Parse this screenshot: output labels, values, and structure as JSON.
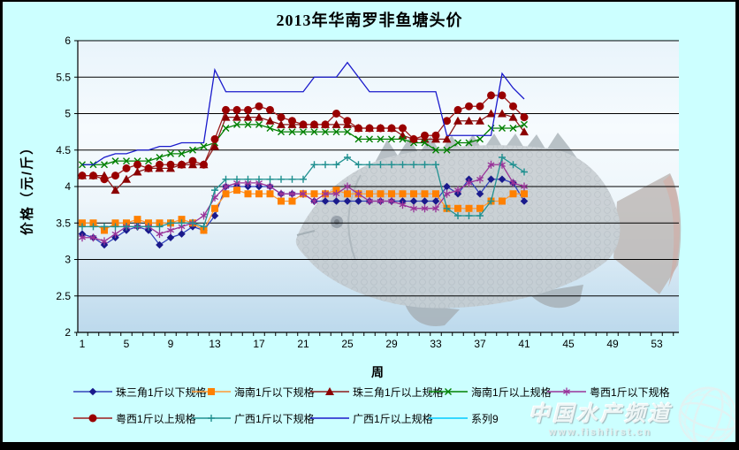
{
  "frame": {
    "background": "#ccffff",
    "border_color": "#000000"
  },
  "chart_data": {
    "type": "line",
    "title": "2013年华南罗非鱼塘头价",
    "xlabel": "周",
    "ylabel": "价格（元/斤）",
    "x_ticks": [
      1,
      5,
      9,
      13,
      17,
      21,
      25,
      29,
      33,
      37,
      41,
      45,
      49,
      53
    ],
    "x_range": [
      1,
      53
    ],
    "ylim": [
      2,
      6
    ],
    "y_ticks": [
      2,
      2.5,
      3,
      3.5,
      4,
      4.5,
      5,
      5.5,
      6
    ],
    "grid": "horizontal",
    "legend_position": "bottom",
    "weeks": [
      1,
      2,
      3,
      4,
      5,
      6,
      7,
      8,
      9,
      10,
      11,
      12,
      13,
      14,
      15,
      16,
      17,
      18,
      19,
      20,
      21,
      22,
      23,
      24,
      25,
      26,
      27,
      28,
      29,
      30,
      31,
      32,
      33,
      34,
      35,
      36,
      37,
      38,
      39,
      40,
      41
    ],
    "series": [
      {
        "id": "zhusanjiao-under",
        "name": "珠三角1斤以下规格",
        "marker": "diamond",
        "color": "#3344bb",
        "marker_color": "#1a1a8c",
        "values": [
          3.35,
          3.3,
          3.2,
          3.3,
          3.4,
          3.45,
          3.4,
          3.2,
          3.3,
          3.35,
          3.45,
          3.4,
          3.6,
          4.0,
          4.0,
          4.0,
          4.0,
          4.0,
          3.9,
          3.9,
          3.9,
          3.8,
          3.8,
          3.8,
          3.8,
          3.8,
          3.8,
          3.8,
          3.8,
          3.8,
          3.8,
          3.8,
          3.8,
          4.0,
          3.9,
          4.1,
          3.9,
          4.1,
          4.1,
          4.05,
          3.8
        ]
      },
      {
        "id": "hainan-under",
        "name": "海南1斤以下规格",
        "marker": "square",
        "color": "#ff9933",
        "marker_color": "#ff8000",
        "values": [
          3.5,
          3.5,
          3.4,
          3.5,
          3.5,
          3.55,
          3.5,
          3.5,
          3.5,
          3.55,
          3.5,
          3.4,
          3.7,
          3.9,
          3.95,
          3.9,
          3.9,
          3.9,
          3.8,
          3.8,
          3.9,
          3.9,
          3.9,
          3.95,
          3.9,
          3.9,
          3.9,
          3.9,
          3.9,
          3.9,
          3.9,
          3.9,
          3.9,
          3.7,
          3.7,
          3.7,
          3.7,
          3.8,
          3.8,
          3.9,
          3.9
        ]
      },
      {
        "id": "zhusanjiao-over",
        "name": "珠三角1斤以上规格",
        "marker": "triangle",
        "color": "#8b1a1a",
        "marker_color": "#8b0000",
        "values": [
          4.15,
          4.15,
          4.15,
          3.95,
          4.1,
          4.2,
          4.25,
          4.25,
          4.25,
          4.3,
          4.3,
          4.3,
          4.55,
          4.95,
          4.95,
          4.95,
          4.95,
          4.9,
          4.85,
          4.85,
          4.85,
          4.85,
          4.85,
          4.85,
          4.85,
          4.8,
          4.8,
          4.8,
          4.8,
          4.7,
          4.65,
          4.65,
          4.65,
          4.65,
          4.9,
          4.9,
          4.9,
          5.0,
          5.0,
          4.95,
          4.75
        ]
      },
      {
        "id": "hainan-over",
        "name": "海南1斤以上规格",
        "marker": "x",
        "color": "#008000",
        "marker_color": "#008000",
        "values": [
          4.3,
          4.3,
          4.3,
          4.35,
          4.35,
          4.35,
          4.35,
          4.4,
          4.45,
          4.45,
          4.5,
          4.55,
          4.6,
          4.8,
          4.85,
          4.85,
          4.85,
          4.8,
          4.75,
          4.75,
          4.75,
          4.75,
          4.75,
          4.75,
          4.75,
          4.65,
          4.65,
          4.65,
          4.65,
          4.65,
          4.6,
          4.6,
          4.5,
          4.5,
          4.6,
          4.6,
          4.65,
          4.8,
          4.8,
          4.8,
          4.85
        ]
      },
      {
        "id": "yuexi-under",
        "name": "粤西1斤以下规格",
        "marker": "star",
        "color": "#993399",
        "marker_color": "#993399",
        "values": [
          3.3,
          3.3,
          3.25,
          3.35,
          3.45,
          3.45,
          3.45,
          3.35,
          3.4,
          3.45,
          3.5,
          3.6,
          3.85,
          4.0,
          4.05,
          4.05,
          4.05,
          4.0,
          3.9,
          3.9,
          3.9,
          3.8,
          3.9,
          3.9,
          4.0,
          3.9,
          3.8,
          3.8,
          3.8,
          3.75,
          3.7,
          3.7,
          3.7,
          3.9,
          3.95,
          4.05,
          4.1,
          4.3,
          4.3,
          4.05,
          4.0
        ]
      },
      {
        "id": "yuexi-over",
        "name": "粤西1斤以上规格",
        "marker": "circle",
        "color": "#9b1c1c",
        "marker_color": "#990000",
        "values": [
          4.15,
          4.15,
          4.1,
          4.15,
          4.25,
          4.3,
          4.25,
          4.3,
          4.3,
          4.3,
          4.35,
          4.3,
          4.65,
          5.05,
          5.05,
          5.05,
          5.1,
          5.05,
          4.95,
          4.9,
          4.85,
          4.85,
          4.85,
          5.0,
          4.9,
          4.8,
          4.8,
          4.8,
          4.8,
          4.8,
          4.65,
          4.7,
          4.7,
          4.9,
          5.05,
          5.1,
          5.1,
          5.25,
          5.25,
          5.1,
          4.95
        ]
      },
      {
        "id": "guangxi-under",
        "name": "广西1斤以下规格",
        "marker": "plus",
        "color": "#209090",
        "marker_color": "#209090",
        "values": [
          3.45,
          3.45,
          3.45,
          3.45,
          3.45,
          3.45,
          3.45,
          3.45,
          3.5,
          3.5,
          3.5,
          3.45,
          3.95,
          4.1,
          4.1,
          4.1,
          4.1,
          4.1,
          4.1,
          4.1,
          4.1,
          4.3,
          4.3,
          4.3,
          4.4,
          4.3,
          4.3,
          4.3,
          4.3,
          4.3,
          4.3,
          4.3,
          4.3,
          3.7,
          3.6,
          3.6,
          3.6,
          3.8,
          4.4,
          4.3,
          4.2
        ]
      },
      {
        "id": "guangxi-over",
        "name": "广西1斤以上规格",
        "marker": "line",
        "color": "#1a1acc",
        "marker_color": "#1a1acc",
        "values": [
          4.3,
          4.3,
          4.4,
          4.45,
          4.45,
          4.5,
          4.5,
          4.55,
          4.55,
          4.6,
          4.6,
          4.6,
          5.6,
          5.3,
          5.3,
          5.3,
          5.3,
          5.3,
          5.3,
          5.3,
          5.3,
          5.5,
          5.5,
          5.5,
          5.7,
          5.5,
          5.3,
          5.3,
          5.3,
          5.3,
          5.3,
          5.3,
          5.3,
          4.7,
          4.7,
          4.7,
          4.7,
          4.7,
          5.55,
          5.35,
          5.2
        ]
      },
      {
        "id": "series9",
        "name": "系列9",
        "marker": "line",
        "color": "#00ccff",
        "marker_color": "#00ccff",
        "values": []
      }
    ]
  },
  "watermark": {
    "brand": "中国水产频道",
    "url": "www.fishfirst.cn"
  }
}
